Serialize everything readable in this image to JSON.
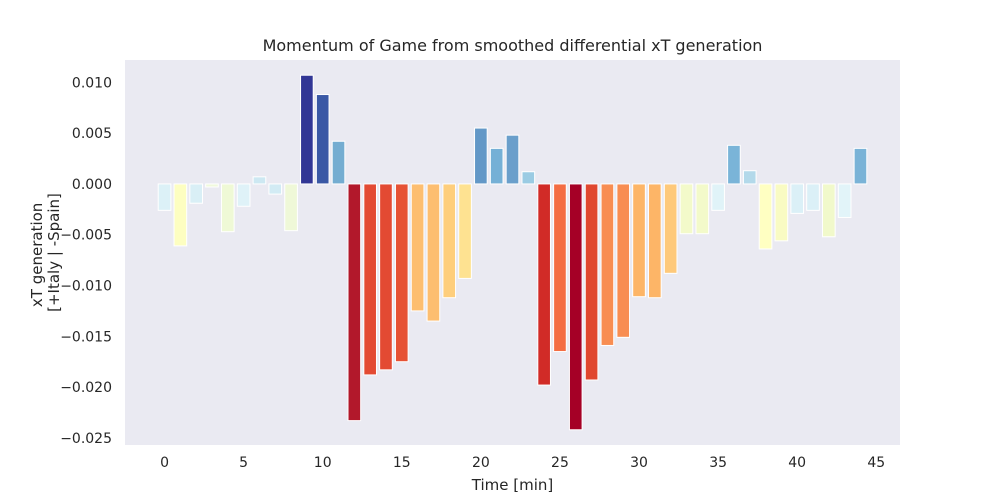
{
  "chart_data": {
    "type": "bar",
    "title": "Momentum of Game from smoothed differential xT generation",
    "xlabel": "Time [min]",
    "ylabel_lines": [
      "xT generation",
      "[+Italy | -Spain]"
    ],
    "x": [
      0,
      1,
      2,
      3,
      4,
      5,
      6,
      7,
      8,
      9,
      10,
      11,
      12,
      13,
      14,
      15,
      16,
      17,
      18,
      19,
      20,
      21,
      22,
      23,
      24,
      25,
      26,
      27,
      28,
      29,
      30,
      31,
      32,
      33,
      34,
      35,
      36,
      37,
      38,
      39,
      40,
      41,
      42,
      43,
      44
    ],
    "values": [
      -0.0026,
      -0.0061,
      -0.0019,
      -0.0003,
      -0.0047,
      -0.0022,
      0.0007,
      -0.001,
      -0.0046,
      0.0107,
      0.0088,
      0.0042,
      -0.0233,
      -0.0188,
      -0.0183,
      -0.0175,
      -0.0125,
      -0.0135,
      -0.0112,
      -0.0093,
      0.0055,
      0.0035,
      0.0048,
      0.0012,
      -0.0198,
      -0.0165,
      -0.0242,
      -0.0193,
      -0.0159,
      -0.0151,
      -0.0111,
      -0.0112,
      -0.0088,
      -0.0049,
      -0.0049,
      -0.0026,
      0.0038,
      0.0013,
      -0.0064,
      -0.0056,
      -0.0029,
      -0.0026,
      -0.0052,
      -0.0033,
      0.0035
    ],
    "colors": [
      "#dcf1f7",
      "#fdfec1",
      "#d9eff6",
      "#f0f9dd",
      "#eff9d6",
      "#dff2f8",
      "#cde8f2",
      "#d2ebf4",
      "#eff8d8",
      "#313695",
      "#3a58a5",
      "#74add1",
      "#b2182b",
      "#e34a33",
      "#e34a33",
      "#e65235",
      "#fdbe70",
      "#fdbe70",
      "#fece7c",
      "#fee291",
      "#6398c7",
      "#75b0d6",
      "#6a9fcb",
      "#9acbe3",
      "#d12b27",
      "#f46d43",
      "#a50026",
      "#e0472f",
      "#f88d52",
      "#f88d52",
      "#fdb567",
      "#fdb567",
      "#fec97a",
      "#f3faca",
      "#f3faca",
      "#e0f3f8",
      "#7ab4d8",
      "#b3d9ea",
      "#ffffc2",
      "#f9fbc3",
      "#dbf0f7",
      "#dbf0f7",
      "#f1f9cb",
      "#e2f4f9",
      "#7ab3d7"
    ],
    "xlim": [
      -2.5,
      46.5
    ],
    "ylim": [
      -0.0257,
      0.0122
    ],
    "xticks": [
      0,
      5,
      10,
      15,
      20,
      25,
      30,
      35,
      40,
      45
    ],
    "xtick_labels": [
      "0",
      "5",
      "10",
      "15",
      "20",
      "25",
      "30",
      "35",
      "40",
      "45"
    ],
    "yticks": [
      0.01,
      0.005,
      0.0,
      -0.005,
      -0.01,
      -0.015,
      -0.02,
      -0.025
    ],
    "ytick_labels": [
      "0.010",
      "0.005",
      "0.000",
      "−0.005",
      "−0.010",
      "−0.015",
      "−0.020",
      "−0.025"
    ],
    "grid": false,
    "plot_background": "#eaeaf2",
    "bar_edge_color": "#ffffff",
    "text_color": "#262626"
  }
}
